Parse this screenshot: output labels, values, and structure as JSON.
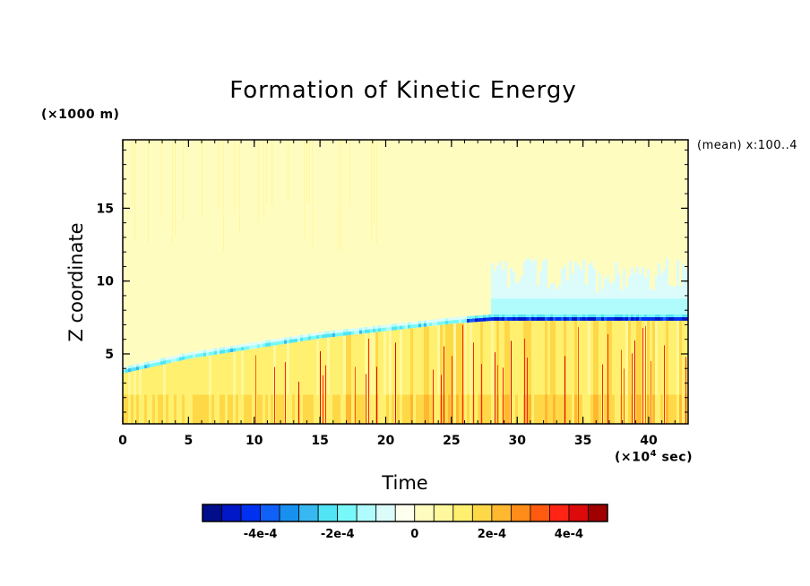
{
  "chart_data": {
    "type": "heatmap",
    "title": "Formation of Kinetic Energy",
    "xlabel": "Time",
    "ylabel": "Z coordinate",
    "x_unit_label": "(×10⁴ sec)",
    "y_unit_label": "(×1000 m)",
    "annotation": "(mean) x:100..4",
    "xlim": [
      0,
      43
    ],
    "ylim": [
      0.2,
      19.7
    ],
    "x_ticks": [
      0,
      5,
      10,
      15,
      20,
      25,
      30,
      35,
      40
    ],
    "y_ticks": [
      5,
      10,
      15
    ],
    "colorbar": {
      "levels": [
        -0.00055,
        -0.0005,
        -0.00045,
        -0.0004,
        -0.00035,
        -0.0003,
        -0.00025,
        -0.0002,
        -0.00015,
        -0.0001,
        -5e-05,
        0,
        5e-05,
        0.0001,
        0.00015,
        0.0002,
        0.00025,
        0.0003,
        0.00035,
        0.0004,
        0.00045,
        0.0005
      ],
      "colors": [
        "#000e8c",
        "#0018c8",
        "#0030f0",
        "#1060f8",
        "#1890f0",
        "#38b8f0",
        "#50e4f4",
        "#78f8f8",
        "#b0fcfc",
        "#dcfcfc",
        "#fffff0",
        "#fffcc0",
        "#fff89c",
        "#fff070",
        "#ffd848",
        "#ffb830",
        "#ff8c18",
        "#ff5a10",
        "#ff2414",
        "#dc0a0a",
        "#a00000"
      ],
      "tick_labels": [
        {
          "value": -0.0004,
          "label": "-4e-4"
        },
        {
          "value": -0.0002,
          "label": "-2e-4"
        },
        {
          "value": 0,
          "label": "0"
        },
        {
          "value": 0.0002,
          "label": "2e-4"
        },
        {
          "value": 0.0004,
          "label": "4e-4"
        }
      ]
    },
    "features": {
      "negative_layer_z": {
        "time": [
          0,
          5,
          10,
          15,
          20,
          25,
          28,
          43
        ],
        "z": [
          3.8,
          4.8,
          5.5,
          6.2,
          6.7,
          7.2,
          7.4,
          7.4
        ]
      },
      "positive_layer_top_z": 7.0,
      "upper_region_value": 2.5e-05,
      "lower_region_value": 0.00015
    }
  }
}
